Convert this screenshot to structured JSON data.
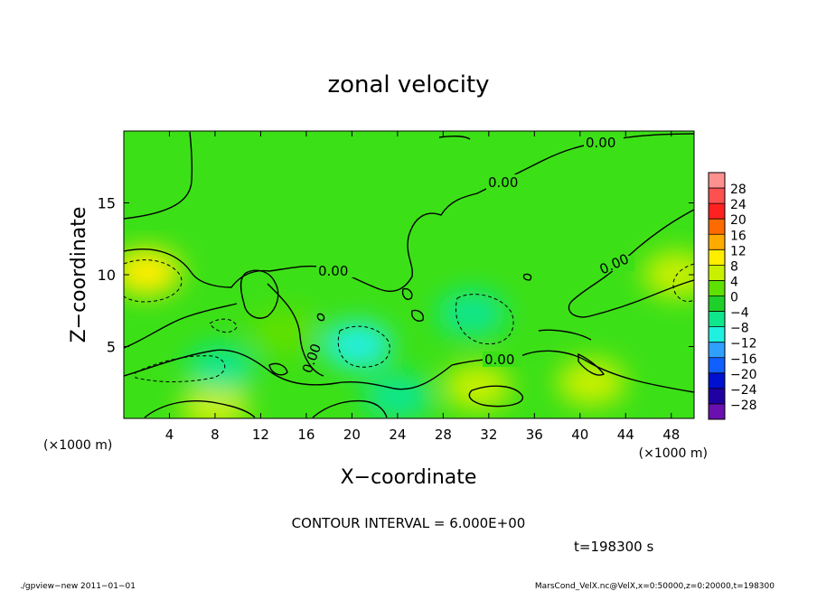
{
  "chart_data": {
    "type": "heatmap",
    "title": "zonal velocity",
    "xlabel": "X−coordinate",
    "ylabel": "Z−coordinate",
    "x_unit": "(×1000 m)",
    "y_unit": "(×1000 m)",
    "xlim": [
      0,
      50
    ],
    "ylim": [
      0,
      20
    ],
    "x_ticks": [
      4,
      8,
      12,
      16,
      20,
      24,
      28,
      32,
      36,
      40,
      44,
      48
    ],
    "y_ticks": [
      5,
      10,
      15
    ],
    "colorbar": {
      "labels": [
        "28",
        "24",
        "20",
        "16",
        "12",
        "8",
        "4",
        "0",
        "−4",
        "−8",
        "−12",
        "−16",
        "−20",
        "−24",
        "−28"
      ],
      "colors": [
        "#ff9090",
        "#ff5050",
        "#ff2020",
        "#ff6a00",
        "#ffaa00",
        "#ffee00",
        "#c8f000",
        "#5ee000",
        "#1fd02a",
        "#10e68c",
        "#20f0e0",
        "#30a0ff",
        "#1060ff",
        "#0010d0",
        "#2000a0",
        "#6a10b0"
      ]
    },
    "contour_interval_text": "CONTOUR INTERVAL = 6.000E+00",
    "contour_labels": [
      "0.00",
      "0.00",
      "0.00",
      "0.00",
      "0.00",
      "0.00"
    ],
    "field_features": [
      {
        "x": 2,
        "z": 10.2,
        "value": 8
      },
      {
        "x": 48.5,
        "z": 10,
        "value": 7
      },
      {
        "x": 8,
        "z": 0.8,
        "value": 7
      },
      {
        "x": 31,
        "z": 2.2,
        "value": 6
      },
      {
        "x": 41,
        "z": 2.5,
        "value": 5
      },
      {
        "x": 20.5,
        "z": 5.1,
        "value": -9
      },
      {
        "x": 30.5,
        "z": 7.3,
        "value": -7
      },
      {
        "x": 8.5,
        "z": 3.5,
        "value": -6
      },
      {
        "x": 24,
        "z": 1.5,
        "value": -4
      },
      {
        "x": 14,
        "z": 6,
        "value": 2
      }
    ],
    "grid": false
  },
  "time_label": "t=198300 s",
  "footer": {
    "left": "./gpview−new  2011−01−01",
    "right": "MarsCond_VelX.nc@VelX,x=0:50000,z=0:20000,t=198300"
  }
}
